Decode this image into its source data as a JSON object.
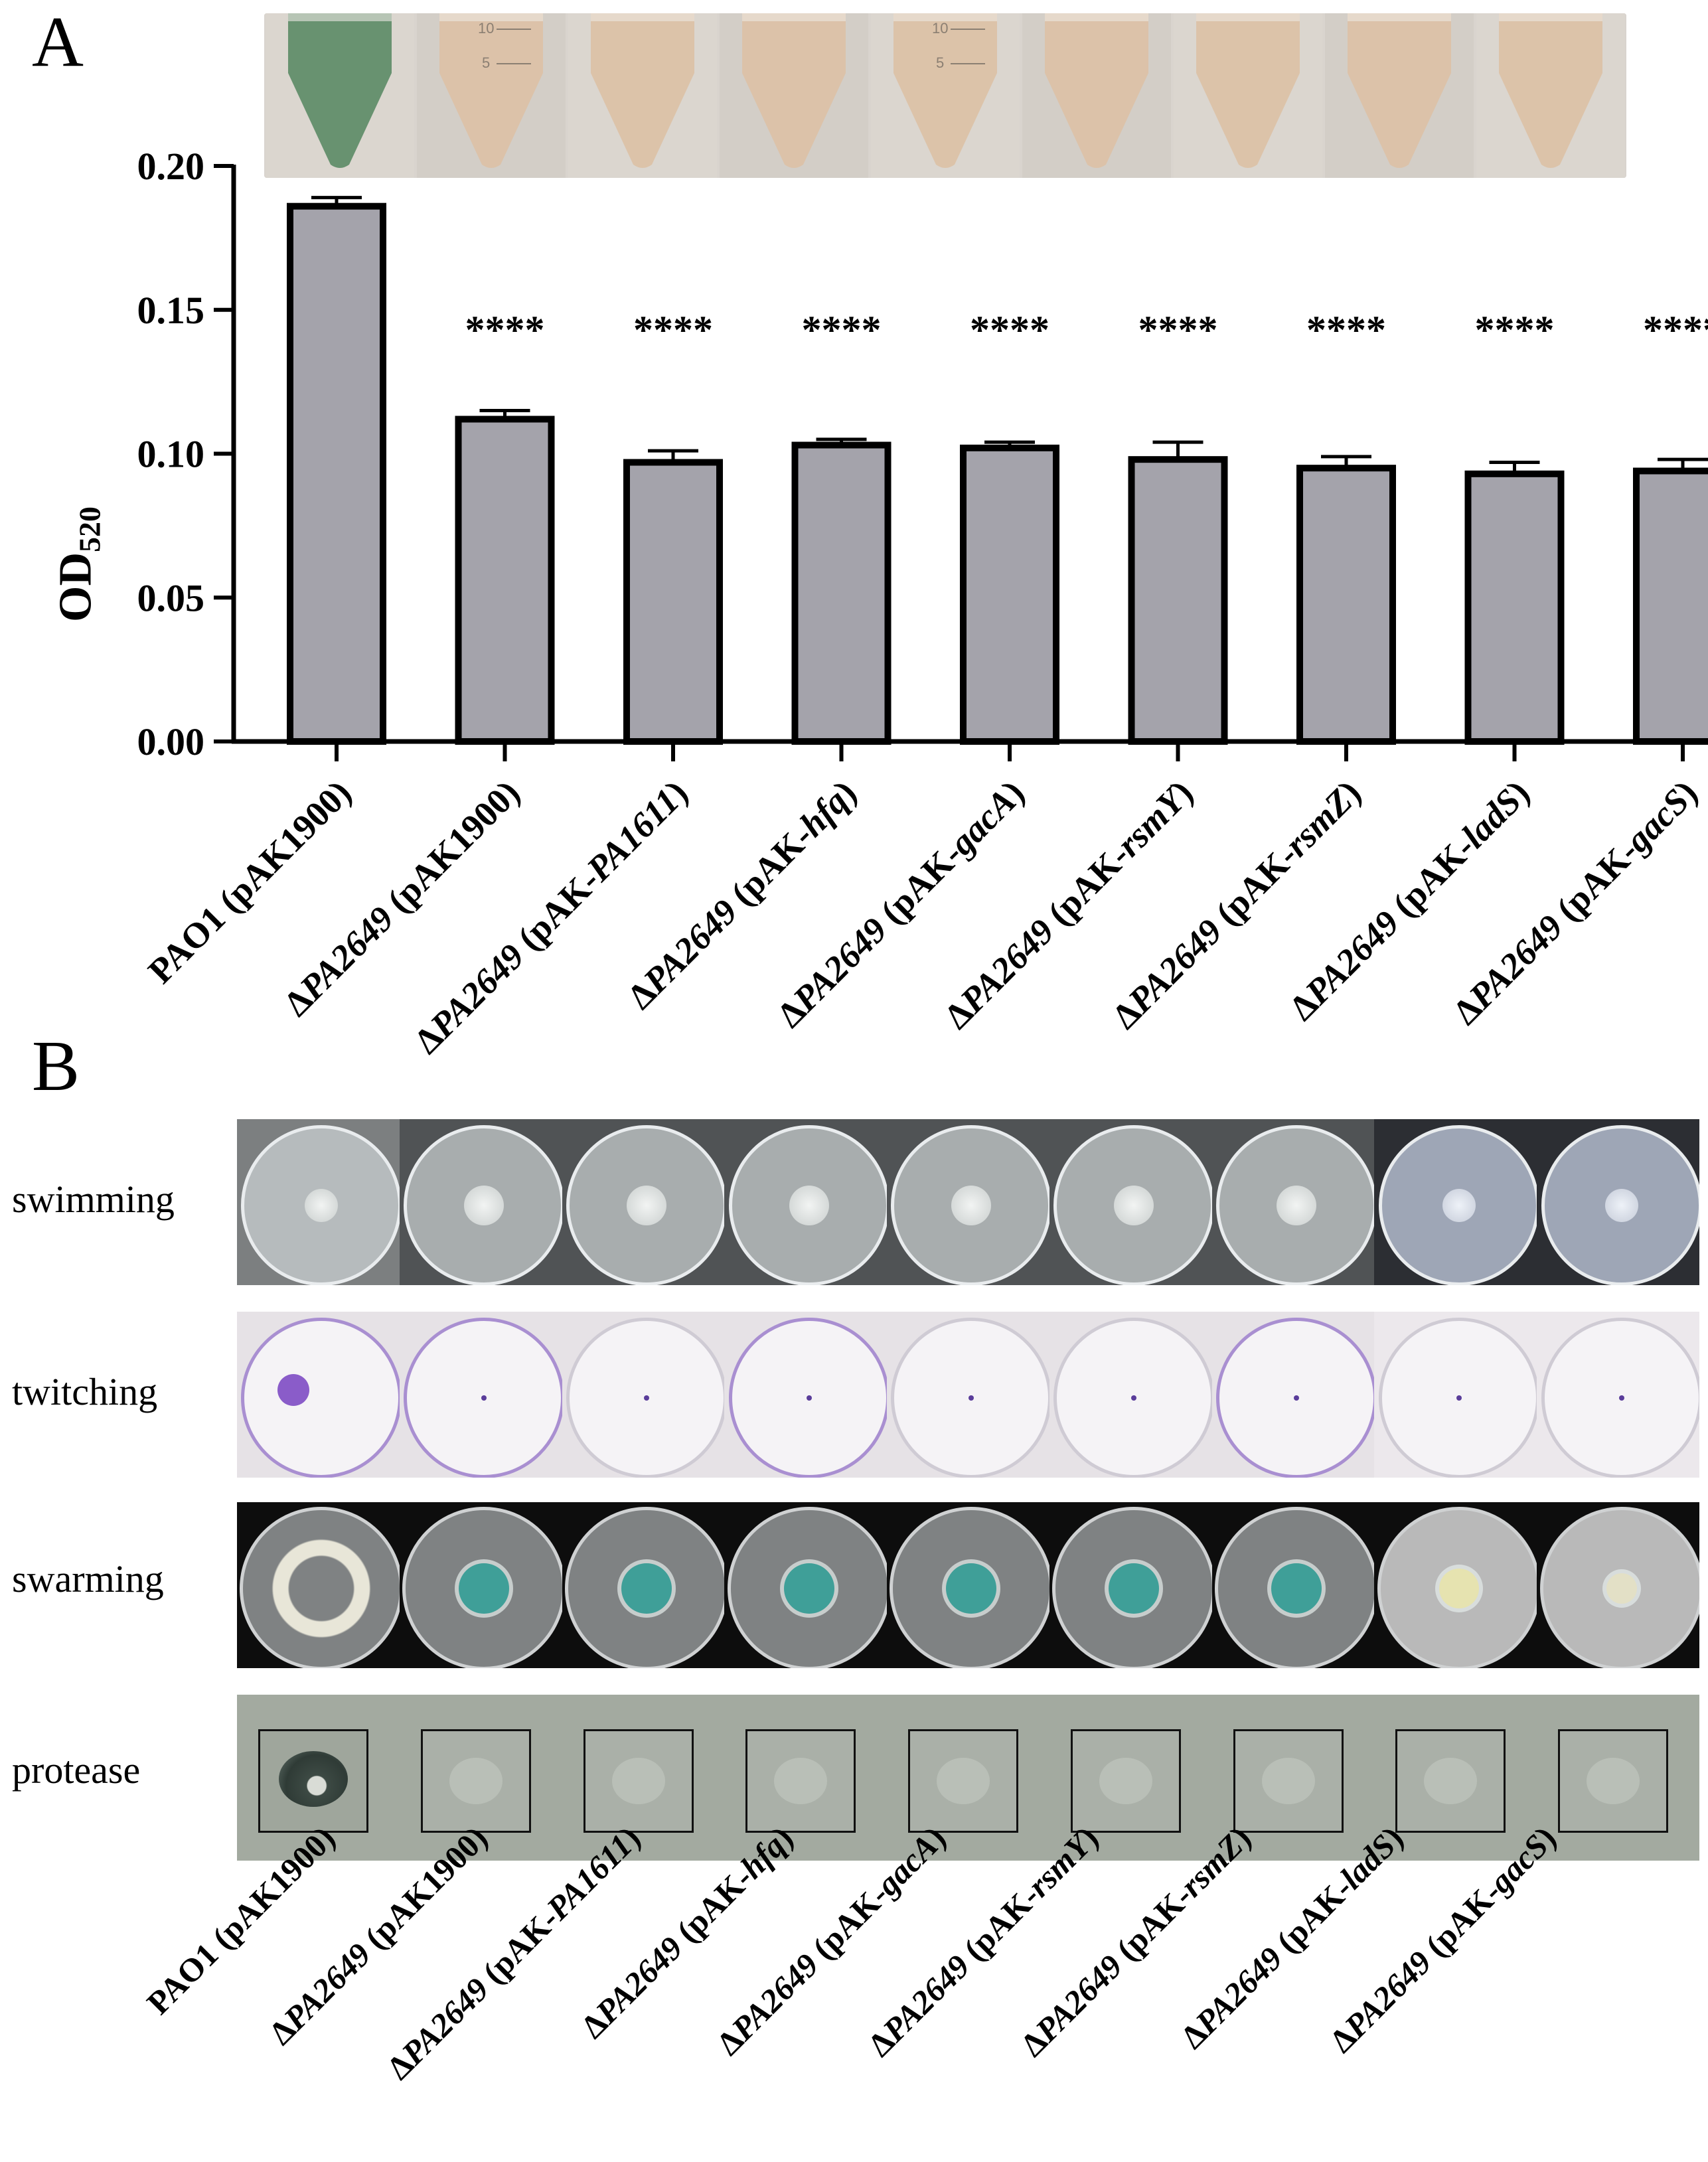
{
  "panels": {
    "a": "A",
    "b": "B"
  },
  "chart_data": {
    "type": "bar",
    "ylabel_main": "OD",
    "ylabel_sub": "520",
    "ylim": [
      0,
      0.2
    ],
    "yticks": [
      "0.00",
      "0.05",
      "0.10",
      "0.15",
      "0.20"
    ],
    "values": [
      0.186,
      0.112,
      0.097,
      0.103,
      0.102,
      0.098,
      0.095,
      0.093,
      0.094
    ],
    "errors": [
      0.003,
      0.003,
      0.004,
      0.002,
      0.002,
      0.006,
      0.004,
      0.004,
      0.004
    ],
    "significance": [
      "",
      "****",
      "****",
      "****",
      "****",
      "****",
      "****",
      "****",
      "****"
    ],
    "bar_color": "#a4a3ab",
    "categories": [
      {
        "prefix": "PAO1 (pAK1900)",
        "italic": "",
        "suffix": ""
      },
      {
        "prefix": "Δ",
        "italic": "PA2649",
        "suffix": " (pAK1900)"
      },
      {
        "prefix": "Δ",
        "italic": "PA2649",
        "suffix": " (pAK-",
        "italic2": "PA1611",
        "suffix2": ")"
      },
      {
        "prefix": "Δ",
        "italic": "PA2649",
        "suffix": " (pAK-",
        "italic2": "hfq",
        "suffix2": ")"
      },
      {
        "prefix": "Δ",
        "italic": "PA2649",
        "suffix": " (pAK-",
        "italic2": "gacA",
        "suffix2": ")"
      },
      {
        "prefix": "Δ",
        "italic": "PA2649",
        "suffix": " (pAK-",
        "italic2": "rsmY",
        "suffix2": ")"
      },
      {
        "prefix": "Δ",
        "italic": "PA2649",
        "suffix": " (pAK-",
        "italic2": "rsmZ",
        "suffix2": ")"
      },
      {
        "prefix": "Δ",
        "italic": "PA2649",
        "suffix": " (pAK-",
        "italic2": "ladS",
        "suffix2": ")"
      },
      {
        "prefix": "Δ",
        "italic": "PA2649",
        "suffix": " (pAK-",
        "italic2": "gacS",
        "suffix2": ")"
      }
    ]
  },
  "tube_marks": [
    "10",
    "5"
  ],
  "phenotypes": {
    "rows": [
      "swimming",
      "twitching",
      "swarming",
      "protease"
    ]
  },
  "colors": {
    "tube_green": "#5e8c68",
    "tube_beige": "#dcc1a6",
    "twitch_purple": "#8a5cc9",
    "swarm_teal": "#3f9f98",
    "swarm_yellow": "#e6e3b0"
  }
}
